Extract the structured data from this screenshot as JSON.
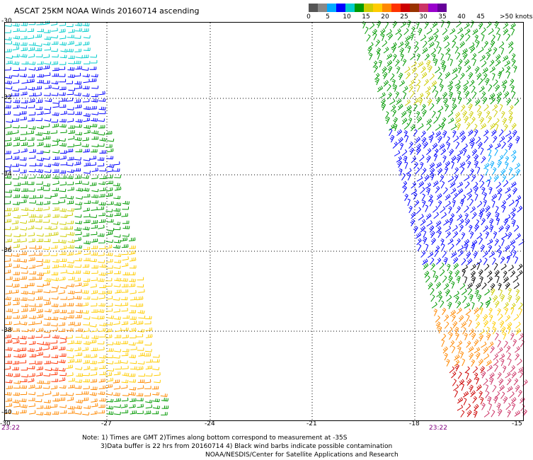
{
  "title": "ASCAT 25KM NOAA Winds 20160714 ascending",
  "legend": {
    "colors": [
      "#555555",
      "#888888",
      "#00aaff",
      "#0000ff",
      "#00cccc",
      "#009900",
      "#cccc00",
      "#ffcc00",
      "#ff8800",
      "#ff3300",
      "#cc0000",
      "#993300",
      "#cc3366",
      "#9900cc",
      "#660099"
    ],
    "labels": [
      "0",
      "5",
      "10",
      "15",
      "20",
      "25",
      "30",
      "35",
      "40",
      "45",
      ">50 knots"
    ]
  },
  "axes": {
    "y_labels": [
      "-30",
      "-32",
      "-34",
      "-36",
      "-38",
      "-40"
    ],
    "x_labels": [
      "-30",
      "-27",
      "-24",
      "-21",
      "-18",
      "-15"
    ]
  },
  "times": {
    "left": "23:22",
    "right": "23:22"
  },
  "notes": {
    "line1": "Note: 1) Times are GMT 2)Times along bottom correspond to measurement at -35S",
    "line2": "3)Data buffer is 22 hrs from 20160714 4) Black wind barbs indicate possible contamination",
    "line3": "NOAA/NESDIS/Center for Satellite Applications and Research"
  }
}
